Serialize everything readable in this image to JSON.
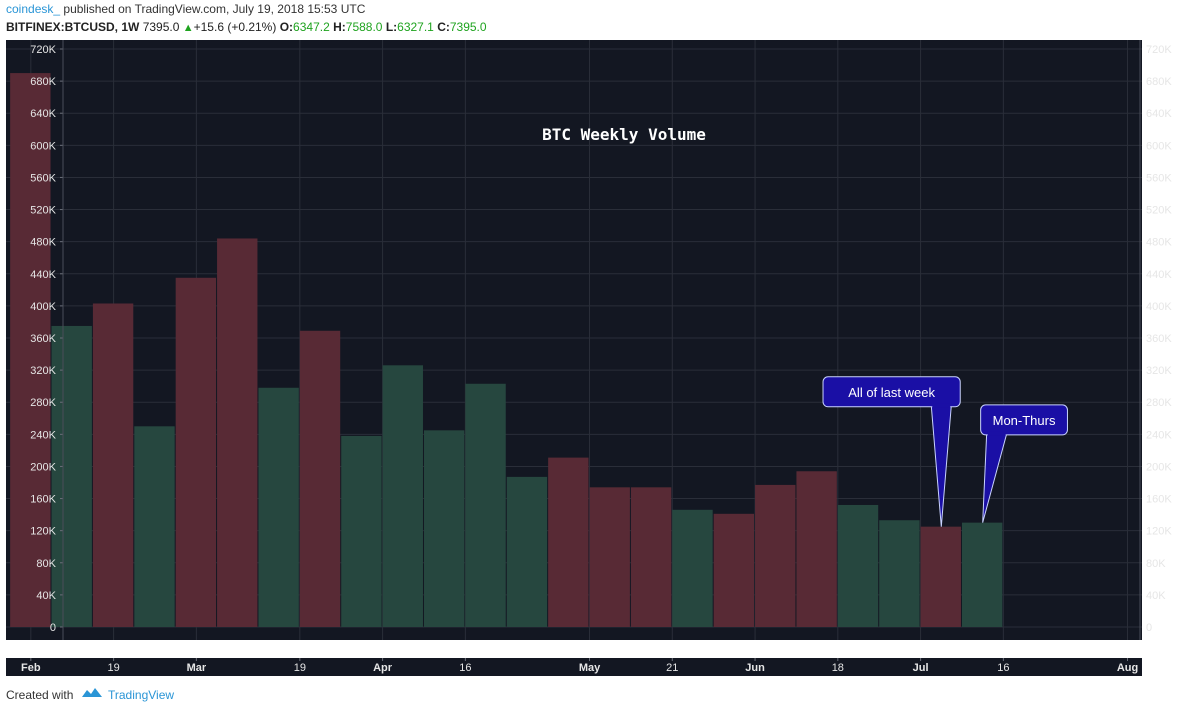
{
  "header": {
    "author": "coindesk_",
    "published": "published on TradingView.com, July 19, 2018 15:53 UTC",
    "symbol": "BITFINEX:BTCUSD, 1W",
    "price": "7395.0",
    "change": "+15.6 (+0.21%)",
    "open_label": "O:",
    "open": "6347.2",
    "high_label": "H:",
    "high": "7588.0",
    "low_label": "L:",
    "low": "6327.1",
    "close_label": "C:",
    "close": "7395.0"
  },
  "footer": {
    "created_with": "Created with",
    "brand": "TradingView"
  },
  "colors": {
    "background": "#131722",
    "grid": "#2a2e39",
    "up": "#26473f",
    "down": "#582a35",
    "axis_text": "#e6e6e6",
    "callout": "#1a0fa5"
  },
  "chart_data": {
    "type": "bar",
    "title": "BTC Weekly Volume",
    "xlabel": "",
    "ylabel": "",
    "ylim": [
      0,
      720000
    ],
    "grid": true,
    "y_ticks": [
      0,
      40000,
      80000,
      120000,
      160000,
      200000,
      240000,
      280000,
      320000,
      360000,
      400000,
      440000,
      480000,
      520000,
      560000,
      600000,
      640000,
      680000,
      720000
    ],
    "y_tick_labels": [
      "0",
      "40K",
      "80K",
      "120K",
      "160K",
      "200K",
      "240K",
      "280K",
      "320K",
      "360K",
      "400K",
      "440K",
      "480K",
      "520K",
      "560K",
      "600K",
      "640K",
      "680K",
      "720K"
    ],
    "x_tick_labels": [
      {
        "label": "Feb",
        "bar_index": 0,
        "bold": true
      },
      {
        "label": "19",
        "bar_index": 2,
        "bold": false
      },
      {
        "label": "Mar",
        "bar_index": 4,
        "bold": true
      },
      {
        "label": "19",
        "bar_index": 6.5,
        "bold": false
      },
      {
        "label": "Apr",
        "bar_index": 8.5,
        "bold": true
      },
      {
        "label": "16",
        "bar_index": 10.5,
        "bold": false
      },
      {
        "label": "May",
        "bar_index": 13.5,
        "bold": true
      },
      {
        "label": "21",
        "bar_index": 15.5,
        "bold": false
      },
      {
        "label": "Jun",
        "bar_index": 17.5,
        "bold": true
      },
      {
        "label": "18",
        "bar_index": 19.5,
        "bold": false
      },
      {
        "label": "Jul",
        "bar_index": 21.5,
        "bold": true
      },
      {
        "label": "16",
        "bar_index": 23.5,
        "bold": false
      },
      {
        "label": "Aug",
        "bar_index": 26.5,
        "bold": true
      }
    ],
    "x_range": [
      -0.6,
      26.85
    ],
    "values": [
      690000,
      375000,
      403000,
      250000,
      435000,
      484000,
      298000,
      369000,
      238000,
      326000,
      245000,
      303000,
      187000,
      211000,
      174000,
      174000,
      146000,
      141000,
      177000,
      194000,
      152000,
      133000,
      125000,
      130000
    ],
    "directions": [
      "down",
      "up",
      "down",
      "up",
      "down",
      "down",
      "up",
      "down",
      "up",
      "up",
      "up",
      "up",
      "up",
      "down",
      "down",
      "down",
      "up",
      "down",
      "down",
      "down",
      "up",
      "up",
      "down",
      "up"
    ],
    "annotations": [
      {
        "text": "All of last week",
        "bar_index": 22,
        "box_center_index": 20.8,
        "box_center_value": 293000
      },
      {
        "text": "Mon-Thurs",
        "bar_index": 23,
        "box_center_index": 24.0,
        "box_center_value": 258000
      }
    ]
  }
}
